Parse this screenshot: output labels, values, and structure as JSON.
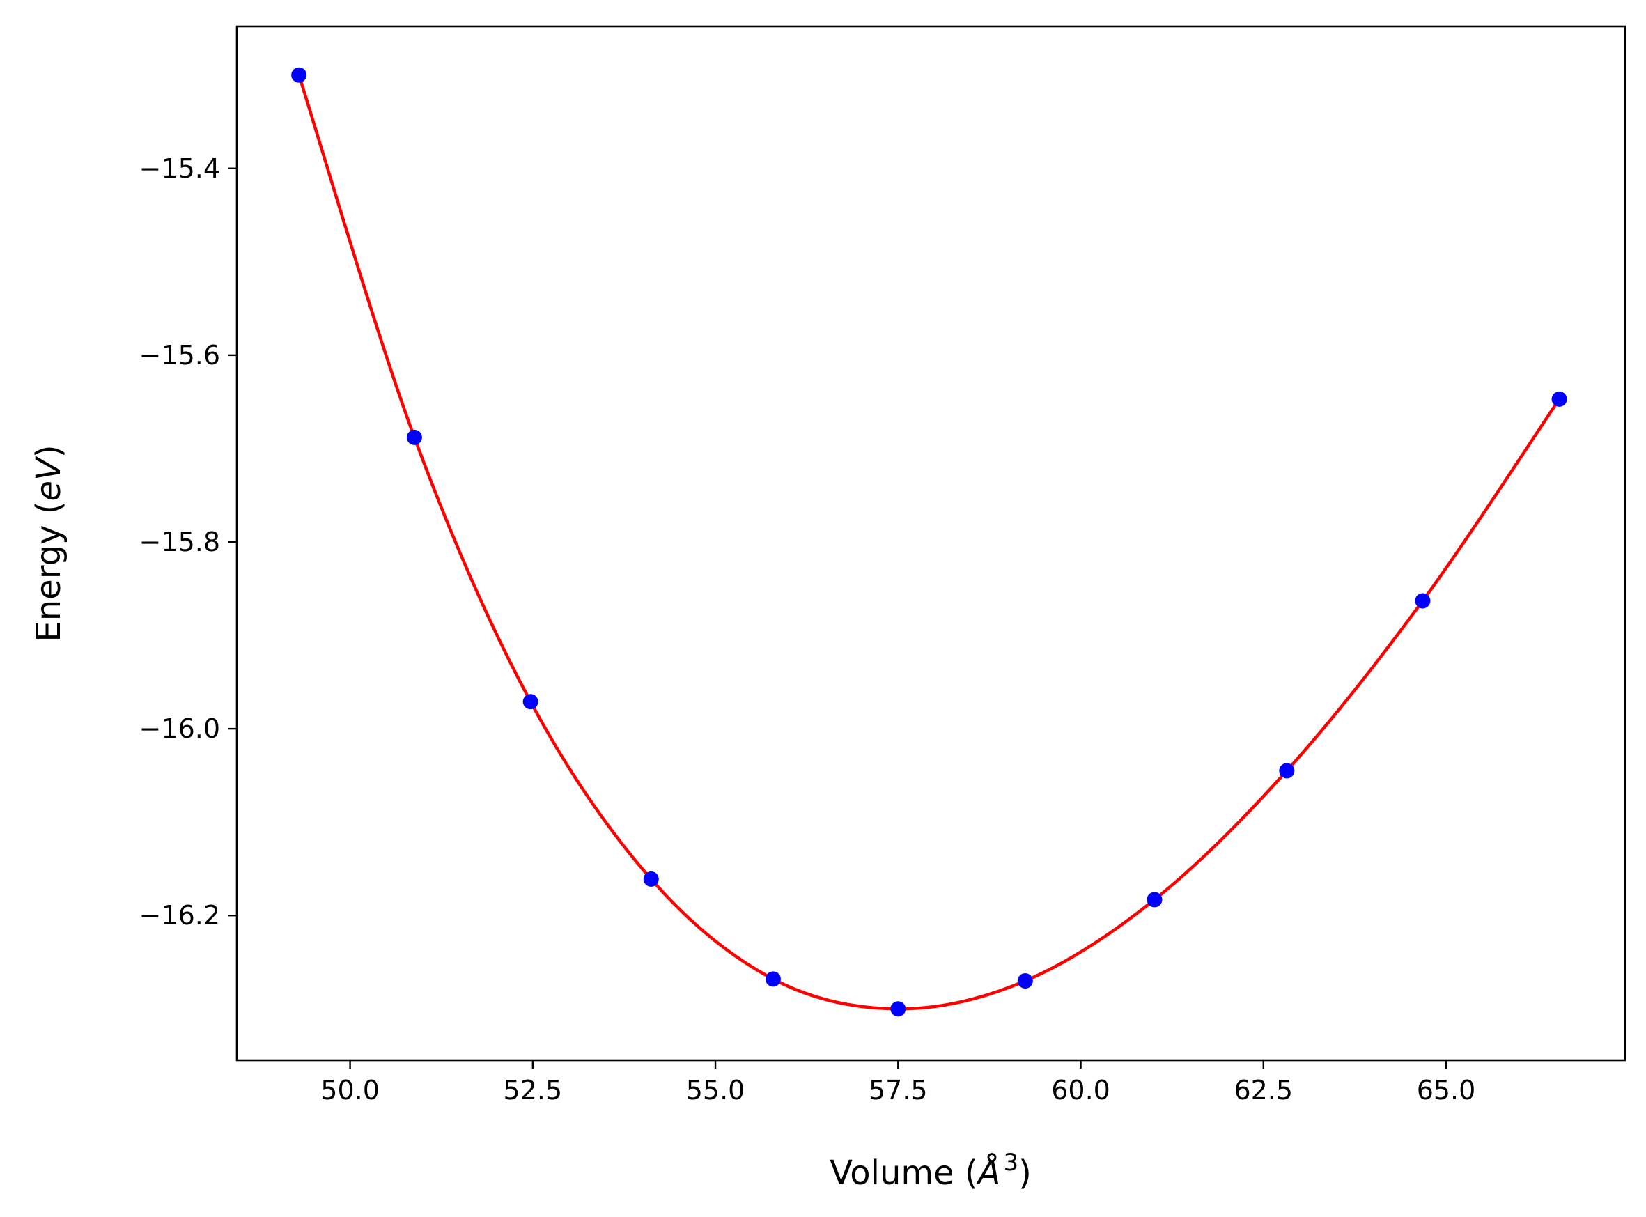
{
  "chart_data": {
    "type": "scatter",
    "xlabel": "Volume (Å³)",
    "xlabel_parts": {
      "prefix": "Volume (",
      "unit": "Å",
      "exponent": "3",
      "suffix": ")"
    },
    "ylabel": "Energy (eV)",
    "ylabel_parts": {
      "prefix": "Energy (",
      "unit": "eV",
      "suffix": ")"
    },
    "xlim": [
      48.45,
      67.45
    ],
    "ylim": [
      -16.355,
      -15.248
    ],
    "x_ticks": [
      50.0,
      52.5,
      55.0,
      57.5,
      60.0,
      62.5,
      65.0
    ],
    "x_tick_labels": [
      "50.0",
      "52.5",
      "55.0",
      "57.5",
      "60.0",
      "62.5",
      "65.0"
    ],
    "y_ticks": [
      -15.4,
      -15.6,
      -15.8,
      -16.0,
      -16.2
    ],
    "y_tick_labels": [
      "−15.4",
      "−15.6",
      "−15.8",
      "−16.0",
      "−16.2"
    ],
    "grid": false,
    "series": [
      {
        "type": "scatter",
        "color": "#0000ff",
        "x": [
          49.3,
          50.88,
          52.47,
          54.12,
          55.79,
          57.5,
          59.24,
          61.01,
          62.82,
          64.68,
          66.55
        ],
        "y": [
          -15.3,
          -15.688,
          -15.971,
          -16.161,
          -16.268,
          -16.3,
          -16.27,
          -16.183,
          -16.045,
          -15.863,
          -15.647
        ]
      },
      {
        "type": "line",
        "color": "#ff0000",
        "x": [
          49.3,
          50.88,
          52.47,
          54.12,
          55.79,
          57.5,
          59.24,
          61.01,
          62.82,
          64.68,
          66.55
        ],
        "y": [
          -15.3,
          -15.688,
          -15.971,
          -16.161,
          -16.268,
          -16.3,
          -16.27,
          -16.183,
          -16.045,
          -15.863,
          -15.647
        ]
      }
    ]
  }
}
